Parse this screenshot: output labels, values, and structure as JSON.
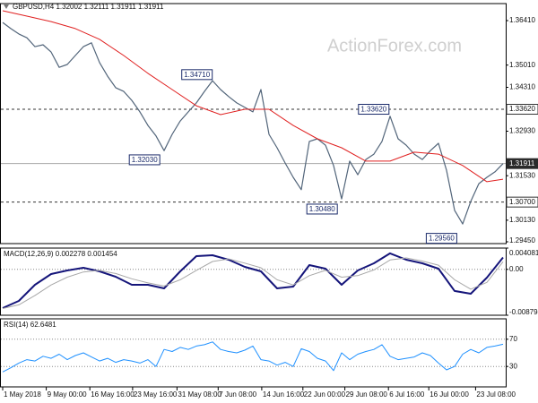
{
  "chart_data": [
    {
      "type": "line",
      "title": "GBPUSD,H4  1.32002 1.32111 1.31911 1.31911",
      "watermark": "ActionForex.com",
      "xlim": [
        0,
        62
      ],
      "ylim": [
        1.29394,
        1.36945
      ],
      "yticks": [
        {
          "value": 1.3641,
          "label": "1.36410"
        },
        {
          "value": 1.3501,
          "label": "1.35010"
        },
        {
          "value": 1.3431,
          "label": "1.34310"
        },
        {
          "value": 1.3293,
          "label": "1.32930"
        },
        {
          "value": 1.3153,
          "label": "1.31530"
        },
        {
          "value": 1.3013,
          "label": "1.30130"
        },
        {
          "value": 1.2945,
          "label": "1.29450"
        }
      ],
      "levels": [
        {
          "value": 1.3362,
          "label": "1.33620",
          "style": "dashed"
        },
        {
          "value": 1.307,
          "label": "1.30700",
          "style": "dashed"
        },
        {
          "value": 1.31911,
          "label": "1.31911",
          "style": "current"
        }
      ],
      "annotations": [
        {
          "label": "1.34710",
          "value": 1.3471,
          "x": 26.3
        },
        {
          "label": "1.33620",
          "value": 1.3362,
          "x": 48.2
        },
        {
          "label": "1.32030",
          "value": 1.3203,
          "x": 19.8
        },
        {
          "label": "1.30480",
          "value": 1.3048,
          "x": 41.8
        },
        {
          "label": "1.29560",
          "value": 1.2956,
          "x": 56.6
        }
      ],
      "series": [
        {
          "color": "#52657a",
          "width": 1.2,
          "values": [
            1.3635,
            1.3616,
            1.3599,
            1.3587,
            1.3559,
            1.3565,
            1.3542,
            1.3494,
            1.3503,
            1.3531,
            1.3559,
            1.3571,
            1.3509,
            1.3466,
            1.343,
            1.3418,
            1.339,
            1.3354,
            1.3311,
            1.3278,
            1.3232,
            1.3283,
            1.3325,
            1.3354,
            1.3382,
            1.3418,
            1.3452,
            1.3424,
            1.3402,
            1.3382,
            1.3368,
            1.3354,
            1.3424,
            1.3283,
            1.3241,
            1.3193,
            1.3148,
            1.3109,
            1.3261,
            1.3269,
            1.3249,
            1.3185,
            1.308,
            1.3199,
            1.3156,
            1.3204,
            1.3221,
            1.3261,
            1.334,
            1.3269,
            1.3249,
            1.3221,
            1.3204,
            1.3232,
            1.3255,
            1.317,
            1.3044,
            1.3001,
            1.3072,
            1.3128,
            1.3148,
            1.3165,
            1.31911
          ]
        },
        {
          "color": "#e02020",
          "width": 1,
          "x": [
            0,
            3,
            6,
            9,
            12,
            15,
            18,
            21,
            24,
            27,
            30,
            33,
            36,
            39,
            42,
            45,
            48,
            51,
            54,
            57,
            60,
            62
          ],
          "values": [
            1.3672,
            1.3655,
            1.3638,
            1.3616,
            1.3582,
            1.3531,
            1.3475,
            1.3424,
            1.3373,
            1.3345,
            1.3362,
            1.3362,
            1.3311,
            1.3269,
            1.3241,
            1.3199,
            1.3199,
            1.3227,
            1.3221,
            1.3185,
            1.3134,
            1.3142
          ]
        }
      ]
    },
    {
      "type": "line",
      "title": "MACD(12,26,9) 0.002278 0.001454",
      "xlim": [
        0,
        62
      ],
      "ylim": [
        -0.008794,
        0.004081
      ],
      "yticks": [
        0.004081,
        {
          "value": 0,
          "label": "0.00"
        },
        -0.008794
      ],
      "levels": [
        {
          "value": 0,
          "style": "dotted"
        }
      ],
      "series": [
        {
          "color": "#15157a",
          "width": 2,
          "x": [
            0,
            2,
            4,
            6,
            8,
            10,
            12,
            14,
            16,
            18,
            20,
            22,
            24,
            26,
            28,
            30,
            32,
            34,
            36,
            38,
            40,
            42,
            44,
            46,
            48,
            50,
            52,
            54,
            56,
            58,
            60,
            62
          ],
          "values": [
            -0.00742,
            -0.00604,
            -0.00295,
            -0.00089,
            -0.00021,
            0.00031,
            -0.00038,
            -0.00141,
            -0.00295,
            -0.00295,
            -0.00364,
            -0.00038,
            0.00254,
            0.00271,
            0.00185,
            0.00048,
            -0.00038,
            -0.00364,
            -0.0033,
            0.00082,
            0.00014,
            -0.00295,
            -0.00021,
            0.00117,
            0.00306,
            0.00185,
            0.00117,
            0.00014,
            -0.00415,
            -0.00467,
            -0.00158,
            0.002278
          ]
        },
        {
          "color": "#a8a8a8",
          "width": 1,
          "x": [
            0,
            2,
            4,
            6,
            8,
            10,
            12,
            14,
            16,
            18,
            20,
            22,
            24,
            26,
            28,
            30,
            32,
            34,
            36,
            38,
            40,
            42,
            44,
            46,
            48,
            50,
            52,
            54,
            56,
            58,
            60,
            62
          ],
          "values": [
            -0.0075,
            -0.0068,
            -0.005,
            -0.003,
            -0.0015,
            -0.0005,
            -0.0002,
            -0.0008,
            -0.0018,
            -0.0026,
            -0.0032,
            -0.002,
            -0.0002,
            0.0015,
            0.002,
            0.0012,
            0.0003,
            -0.002,
            -0.003,
            -0.0012,
            -0.0002,
            -0.0015,
            -0.0012,
            -0.0001,
            0.0018,
            0.0022,
            0.0016,
            0.0008,
            -0.002,
            -0.0038,
            -0.0025,
            0.001454
          ]
        }
      ]
    },
    {
      "type": "line",
      "title": "RSI(14) 62.6481",
      "xlim": [
        0,
        62
      ],
      "ylim": [
        0,
        100
      ],
      "yticks": [
        70,
        30
      ],
      "levels": [
        {
          "value": 70,
          "style": "dotted"
        },
        {
          "value": 30,
          "style": "dotted"
        }
      ],
      "xticks": [
        {
          "value": 0,
          "label": "1 May 2018"
        },
        {
          "value": 5.4,
          "label": "9 May 00:00"
        },
        {
          "value": 10.8,
          "label": "16 May 16:00"
        },
        {
          "value": 16.1,
          "label": "23 May 16:00"
        },
        {
          "value": 21.6,
          "label": "31 May 08:00"
        },
        {
          "value": 26.7,
          "label": "7 Jun 08:00"
        },
        {
          "value": 32.1,
          "label": "14 Jun 16:00"
        },
        {
          "value": 37.2,
          "label": "22 Jun 00:00"
        },
        {
          "value": 42.4,
          "label": "29 Jun 08:00"
        },
        {
          "value": 47.8,
          "label": "6 Jul 16:00"
        },
        {
          "value": 52.8,
          "label": "16 Jul 00:00"
        },
        {
          "value": 58.6,
          "label": "23 Jul 08:00"
        }
      ],
      "series": [
        {
          "color": "#1e90ff",
          "width": 1,
          "values": [
            22,
            28,
            35,
            40,
            38,
            45,
            42,
            48,
            40,
            46,
            50,
            44,
            38,
            42,
            36,
            40,
            38,
            35,
            40,
            30,
            55,
            52,
            58,
            55,
            60,
            62,
            66,
            55,
            52,
            50,
            54,
            60,
            40,
            38,
            32,
            36,
            30,
            56,
            52,
            42,
            38,
            24,
            50,
            40,
            48,
            52,
            55,
            62,
            45,
            40,
            42,
            44,
            50,
            46,
            35,
            25,
            30,
            48,
            55,
            50,
            58,
            60,
            62.6481
          ]
        }
      ]
    }
  ]
}
